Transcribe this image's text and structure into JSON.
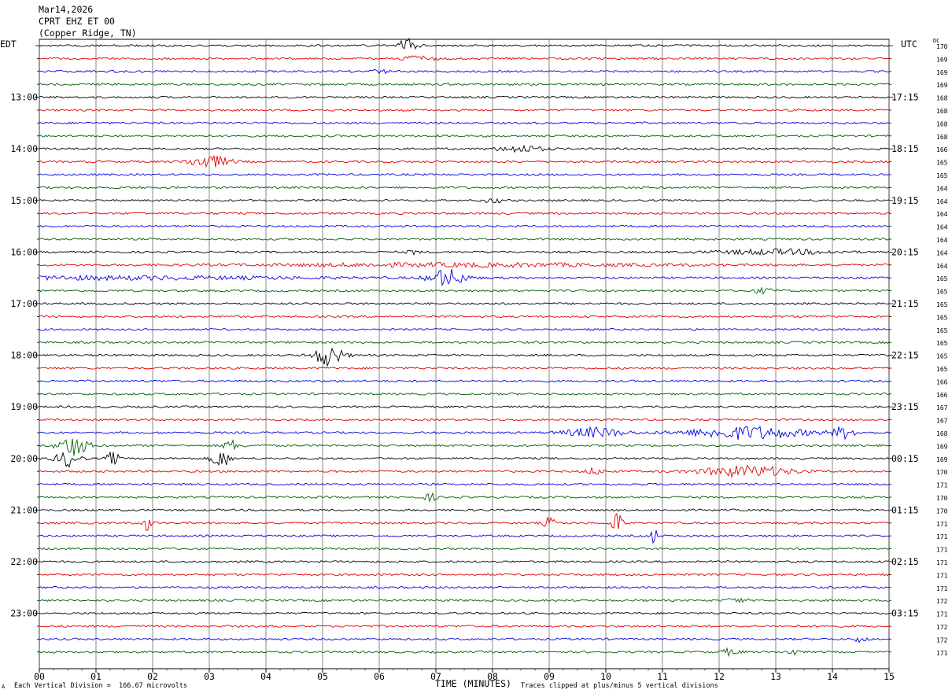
{
  "header": {
    "date": "Mar14,2026",
    "station": "CPRT EHZ ET 00",
    "location": "(Copper Ridge, TN)",
    "left_timezone": "EDT",
    "right_timezone": "UTC",
    "dc_label": "DC"
  },
  "footer": {
    "scale_note": "Each Vertical Division =  166.67 microvolts",
    "clip_note": "Traces clipped at plus/minus 5 vertical divisions",
    "corner_mark": "A"
  },
  "colors": {
    "trace_cycle": [
      "#000000",
      "#e00000",
      "#0000e0",
      "#006000"
    ],
    "grid": "#000000",
    "background": "#ffffff"
  },
  "chart_data": {
    "type": "line",
    "title": "CPRT EHZ ET 00",
    "xlabel": "TIME (MINUTES)",
    "xlim": [
      0,
      15
    ],
    "x_tick_labels": [
      "00",
      "01",
      "02",
      "03",
      "04",
      "05",
      "06",
      "07",
      "08",
      "09",
      "10",
      "11",
      "12",
      "13",
      "14",
      "15"
    ],
    "rows_per_hour": 4,
    "num_rows": 48,
    "left_time_labels": [
      {
        "row": 4,
        "label": "13:00"
      },
      {
        "row": 8,
        "label": "14:00"
      },
      {
        "row": 12,
        "label": "15:00"
      },
      {
        "row": 16,
        "label": "16:00"
      },
      {
        "row": 20,
        "label": "17:00"
      },
      {
        "row": 24,
        "label": "18:00"
      },
      {
        "row": 28,
        "label": "19:00"
      },
      {
        "row": 32,
        "label": "20:00"
      },
      {
        "row": 36,
        "label": "21:00"
      },
      {
        "row": 40,
        "label": "22:00"
      },
      {
        "row": 44,
        "label": "23:00"
      }
    ],
    "right_time_labels": [
      {
        "row": 4,
        "label": "17:15"
      },
      {
        "row": 8,
        "label": "18:15"
      },
      {
        "row": 12,
        "label": "19:15"
      },
      {
        "row": 16,
        "label": "20:15"
      },
      {
        "row": 20,
        "label": "21:15"
      },
      {
        "row": 24,
        "label": "22:15"
      },
      {
        "row": 28,
        "label": "23:15"
      },
      {
        "row": 32,
        "label": "00:15"
      },
      {
        "row": 36,
        "label": "01:15"
      },
      {
        "row": 40,
        "label": "02:15"
      },
      {
        "row": 44,
        "label": "03:15"
      }
    ],
    "dc_offsets": [
      170,
      169,
      169,
      169,
      168,
      168,
      168,
      168,
      166,
      165,
      165,
      164,
      164,
      164,
      164,
      164,
      164,
      164,
      165,
      165,
      165,
      165,
      165,
      165,
      165,
      165,
      166,
      166,
      167,
      167,
      168,
      169,
      169,
      170,
      171,
      170,
      170,
      171,
      171,
      171,
      171,
      171,
      171,
      172,
      171,
      172,
      172,
      171
    ],
    "events": [
      {
        "row": 0,
        "minute": 6.5,
        "amp": 9,
        "width": 0.3
      },
      {
        "row": 1,
        "minute": 6.7,
        "amp": 4,
        "width": 0.5
      },
      {
        "row": 2,
        "minute": 6.0,
        "amp": 2,
        "width": 0.4
      },
      {
        "row": 8,
        "minute": 8.5,
        "amp": 4,
        "width": 0.8
      },
      {
        "row": 9,
        "minute": 3.0,
        "amp": 8,
        "width": 0.7
      },
      {
        "row": 12,
        "minute": 8.0,
        "amp": 3,
        "width": 0.3
      },
      {
        "row": 16,
        "minute": 13.0,
        "amp": 3,
        "width": 2.0
      },
      {
        "row": 16,
        "minute": 6.6,
        "amp": 3,
        "width": 0.2
      },
      {
        "row": 17,
        "minute": 7.5,
        "amp": 2,
        "width": 7.0
      },
      {
        "row": 18,
        "minute": 7.2,
        "amp": 11,
        "width": 0.6
      },
      {
        "row": 18,
        "minute": 1.0,
        "amp": 2,
        "width": 8.0
      },
      {
        "row": 19,
        "minute": 12.8,
        "amp": 3,
        "width": 0.4
      },
      {
        "row": 24,
        "minute": 5.1,
        "amp": 13,
        "width": 0.5
      },
      {
        "row": 30,
        "minute": 12.5,
        "amp": 8,
        "width": 2.0
      },
      {
        "row": 30,
        "minute": 9.8,
        "amp": 6,
        "width": 1.0
      },
      {
        "row": 30,
        "minute": 14.2,
        "amp": 7,
        "width": 0.4
      },
      {
        "row": 31,
        "minute": 0.6,
        "amp": 13,
        "width": 0.5
      },
      {
        "row": 31,
        "minute": 3.4,
        "amp": 6,
        "width": 0.3
      },
      {
        "row": 32,
        "minute": 0.5,
        "amp": 10,
        "width": 0.4
      },
      {
        "row": 32,
        "minute": 1.3,
        "amp": 9,
        "width": 0.2
      },
      {
        "row": 32,
        "minute": 3.2,
        "amp": 12,
        "width": 0.3
      },
      {
        "row": 33,
        "minute": 12.5,
        "amp": 7,
        "width": 1.5
      },
      {
        "row": 33,
        "minute": 9.8,
        "amp": 4,
        "width": 0.3
      },
      {
        "row": 35,
        "minute": 6.9,
        "amp": 5,
        "width": 0.2
      },
      {
        "row": 37,
        "minute": 10.2,
        "amp": 13,
        "width": 0.2
      },
      {
        "row": 37,
        "minute": 1.9,
        "amp": 10,
        "width": 0.15
      },
      {
        "row": 37,
        "minute": 9.0,
        "amp": 7,
        "width": 0.2
      },
      {
        "row": 38,
        "minute": 10.85,
        "amp": 12,
        "width": 0.1
      },
      {
        "row": 43,
        "minute": 12.3,
        "amp": 3,
        "width": 0.3
      },
      {
        "row": 46,
        "minute": 14.5,
        "amp": 4,
        "width": 0.2
      },
      {
        "row": 47,
        "minute": 12.2,
        "amp": 4,
        "width": 0.3
      },
      {
        "row": 47,
        "minute": 13.3,
        "amp": 4,
        "width": 0.2
      }
    ]
  }
}
